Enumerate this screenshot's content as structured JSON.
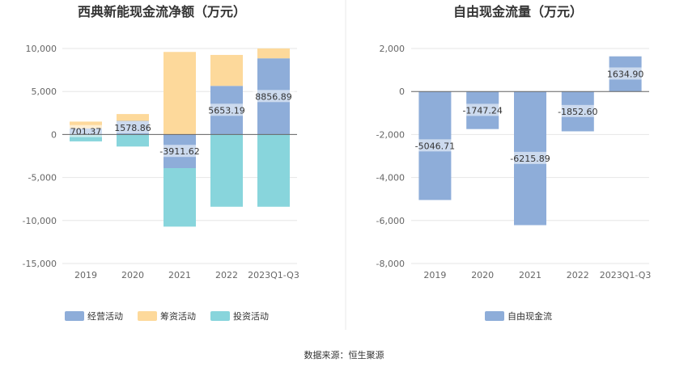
{
  "source_text": "数据来源：恒生聚源",
  "chart_data": [
    {
      "type": "bar",
      "stacked": true,
      "title": "西典新能现金流净额（万元）",
      "categories": [
        "2019",
        "2020",
        "2021",
        "2022",
        "2023Q1-Q3"
      ],
      "ylim": [
        -15000,
        10000
      ],
      "yticks": [
        10000,
        5000,
        0,
        -5000,
        -10000,
        -15000
      ],
      "ytick_labels": [
        "10,000",
        "5,000",
        "0",
        "-5,000",
        "-10,000",
        "-15,000"
      ],
      "grid": true,
      "legend_position": "bottom",
      "series": [
        {
          "name": "经营活动",
          "color": "#8eadd9",
          "values": [
            701.37,
            1578.86,
            -3911.62,
            5653.19,
            8856.89
          ],
          "data_labels": [
            "701.37",
            "1578.86",
            "-3911.62",
            "5653.19",
            "8856.89"
          ]
        },
        {
          "name": "筹资活动",
          "color": "#fdd99b",
          "values": [
            800,
            800,
            9600,
            3600,
            1150
          ]
        },
        {
          "name": "投资活动",
          "color": "#88d5dc",
          "values": [
            -800,
            -1400,
            -6800,
            -8400,
            -8400
          ]
        }
      ]
    },
    {
      "type": "bar",
      "title": "自由现金流量（万元）",
      "categories": [
        "2019",
        "2020",
        "2021",
        "2022",
        "2023Q1-Q3"
      ],
      "ylim": [
        -8000,
        2000
      ],
      "yticks": [
        2000,
        0,
        -2000,
        -4000,
        -6000,
        -8000
      ],
      "ytick_labels": [
        "2,000",
        "0",
        "-2,000",
        "-4,000",
        "-6,000",
        "-8,000"
      ],
      "grid": true,
      "legend_position": "bottom",
      "series": [
        {
          "name": "自由现金流",
          "color": "#8eadd9",
          "values": [
            -5046.71,
            -1747.24,
            -6215.89,
            -1852.6,
            1634.9
          ],
          "data_labels": [
            "-5046.71",
            "-1747.24",
            "-6215.89",
            "-1852.60",
            "1634.90"
          ]
        }
      ]
    }
  ]
}
